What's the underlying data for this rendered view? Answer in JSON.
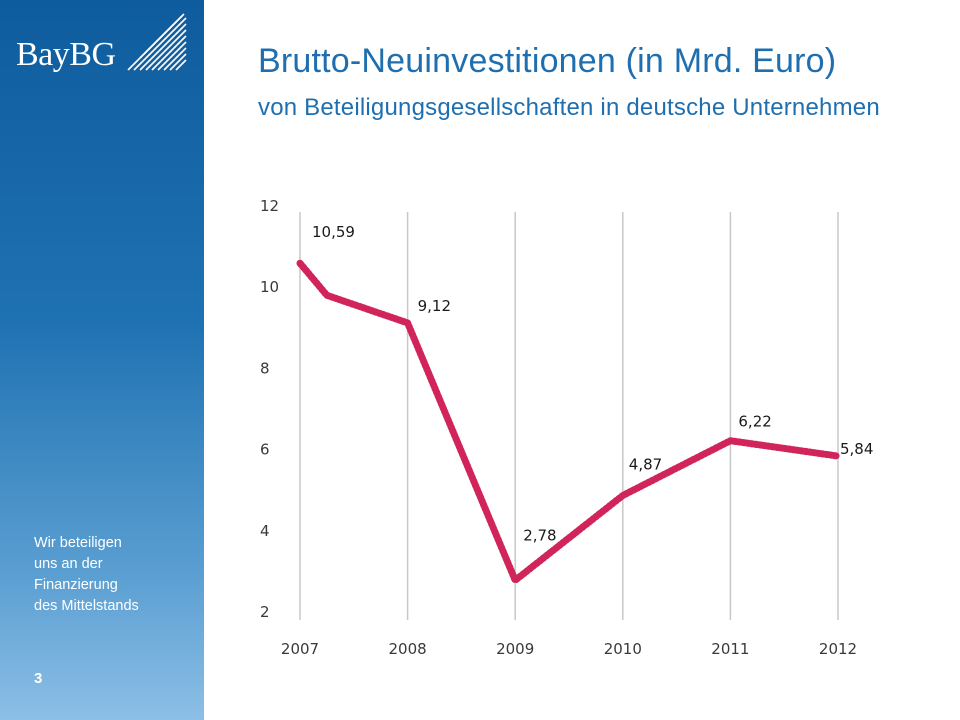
{
  "brand": {
    "logo_text": "BayBG",
    "tagline": [
      "Wir beteiligen",
      "uns an der",
      "Finanzierung",
      "des Mittelstands"
    ],
    "page_number": "3",
    "colors": {
      "sidebar": "#1f72b2",
      "title": "#1f6fb0",
      "line": "#d0245a"
    }
  },
  "chart_data": {
    "type": "line",
    "title": "Brutto-Neuinvestitionen (in Mrd. Euro)",
    "subtitle": "von Beteiligungsgesellschaften in deutsche Unternehmen",
    "categories": [
      "2007",
      "2008",
      "2009",
      "2010",
      "2011",
      "2012"
    ],
    "series": [
      {
        "x": [
          2007,
          2007.25,
          2008,
          2009,
          2010,
          2011,
          2012
        ],
        "values": [
          10.59,
          9.8,
          9.12,
          2.78,
          4.87,
          6.22,
          5.84
        ]
      }
    ],
    "data_labels": [
      {
        "year": 2007,
        "value": 10.59,
        "text": "10,59"
      },
      {
        "year": 2008,
        "value": 9.12,
        "text": "9,12"
      },
      {
        "year": 2009,
        "value": 2.78,
        "text": "2,78"
      },
      {
        "year": 2010,
        "value": 4.87,
        "text": "4,87"
      },
      {
        "year": 2011,
        "value": 6.22,
        "text": "6,22"
      },
      {
        "year": 2012,
        "value": 5.84,
        "text": "5,84"
      }
    ],
    "yticks": [
      "2",
      "4",
      "6",
      "8",
      "10",
      "12"
    ],
    "ylim": [
      2,
      12
    ],
    "xlim": [
      2007,
      2012
    ],
    "grid": "vertical lines at each year",
    "legend": "none"
  }
}
